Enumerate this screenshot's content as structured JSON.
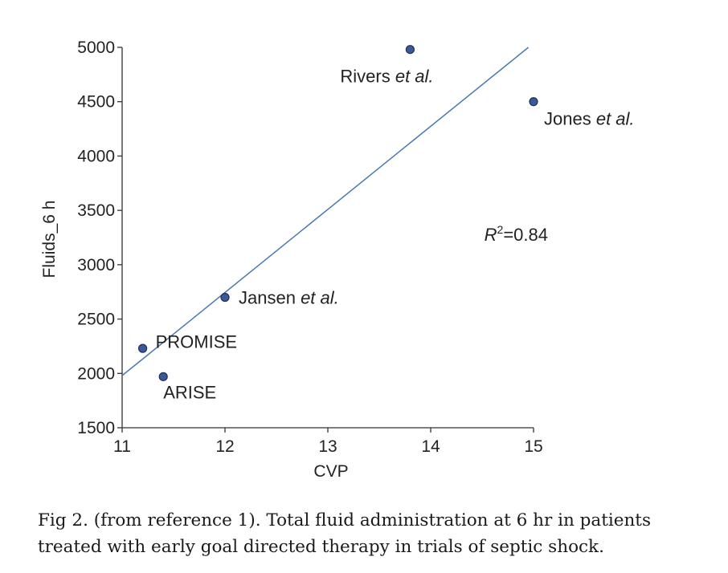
{
  "chart_data": {
    "type": "scatter",
    "xlabel": "CVP",
    "ylabel": "Fluids_6 h",
    "xlim": [
      11,
      15
    ],
    "ylim": [
      1500,
      5000
    ],
    "x_ticks": [
      11,
      12,
      13,
      14,
      15
    ],
    "y_ticks": [
      1500,
      2000,
      2500,
      3000,
      3500,
      4000,
      4500,
      5000
    ],
    "grid": false,
    "points": [
      {
        "name": "Rivers",
        "suffix": "et al.",
        "x": 13.8,
        "y": 4980
      },
      {
        "name": "Jones",
        "suffix": "et al.",
        "x": 15.0,
        "y": 4500
      },
      {
        "name": "Jansen",
        "suffix": "et al.",
        "x": 12.0,
        "y": 2700
      },
      {
        "name": "PROMISE",
        "suffix": "",
        "x": 11.2,
        "y": 2230
      },
      {
        "name": "ARISE",
        "suffix": "",
        "x": 11.4,
        "y": 1970
      }
    ],
    "trendline": {
      "x": [
        11,
        14.95
      ],
      "y": [
        1980,
        5000
      ]
    },
    "annotation": {
      "r_symbol": "R",
      "superscript": "2",
      "value": "=0.84"
    },
    "colors": {
      "point_fill": "#3b5998",
      "point_stroke": "#1f2f55",
      "line": "#4a78b0",
      "axis": "#333333"
    }
  },
  "caption": "Fig 2. (from reference 1). Total fluid administration at 6 hr in patients treated with early goal directed therapy in trials of septic shock."
}
